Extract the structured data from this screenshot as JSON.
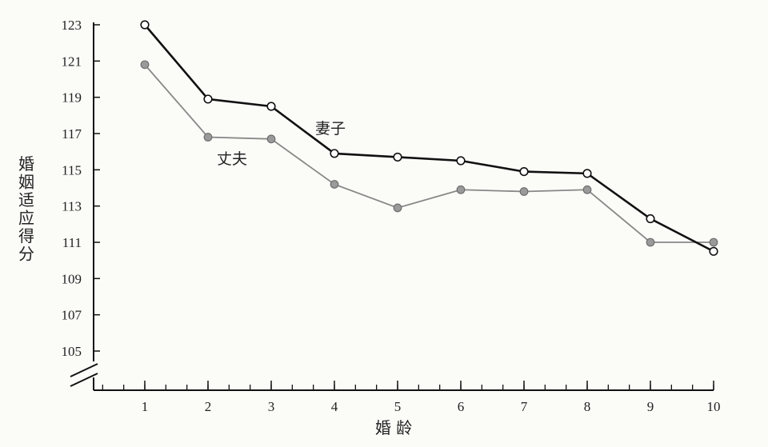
{
  "chart_data": {
    "type": "line",
    "xlabel": "婚 龄",
    "ylabel": "婚姻适应得分",
    "x": [
      1,
      2,
      3,
      4,
      5,
      6,
      7,
      8,
      9,
      10
    ],
    "xticks": [
      "1",
      "2",
      "3",
      "4",
      "5",
      "6",
      "7",
      "8",
      "9",
      "10"
    ],
    "yticks": [
      "123",
      "121",
      "119",
      "117",
      "115",
      "113",
      "111",
      "109",
      "107",
      "105"
    ],
    "ylim": [
      105,
      123
    ],
    "y_axis_break": true,
    "grid": false,
    "series": [
      {
        "name": "妻子",
        "color": "#111111",
        "marker": "open-circle",
        "values": [
          123.0,
          118.9,
          118.5,
          115.9,
          115.7,
          115.5,
          114.9,
          114.8,
          112.3,
          110.5
        ]
      },
      {
        "name": "丈夫",
        "color": "#888888",
        "marker": "filled-circle",
        "values": [
          120.8,
          116.8,
          116.7,
          114.2,
          112.9,
          113.9,
          113.8,
          113.9,
          111.0,
          111.0
        ]
      }
    ]
  }
}
